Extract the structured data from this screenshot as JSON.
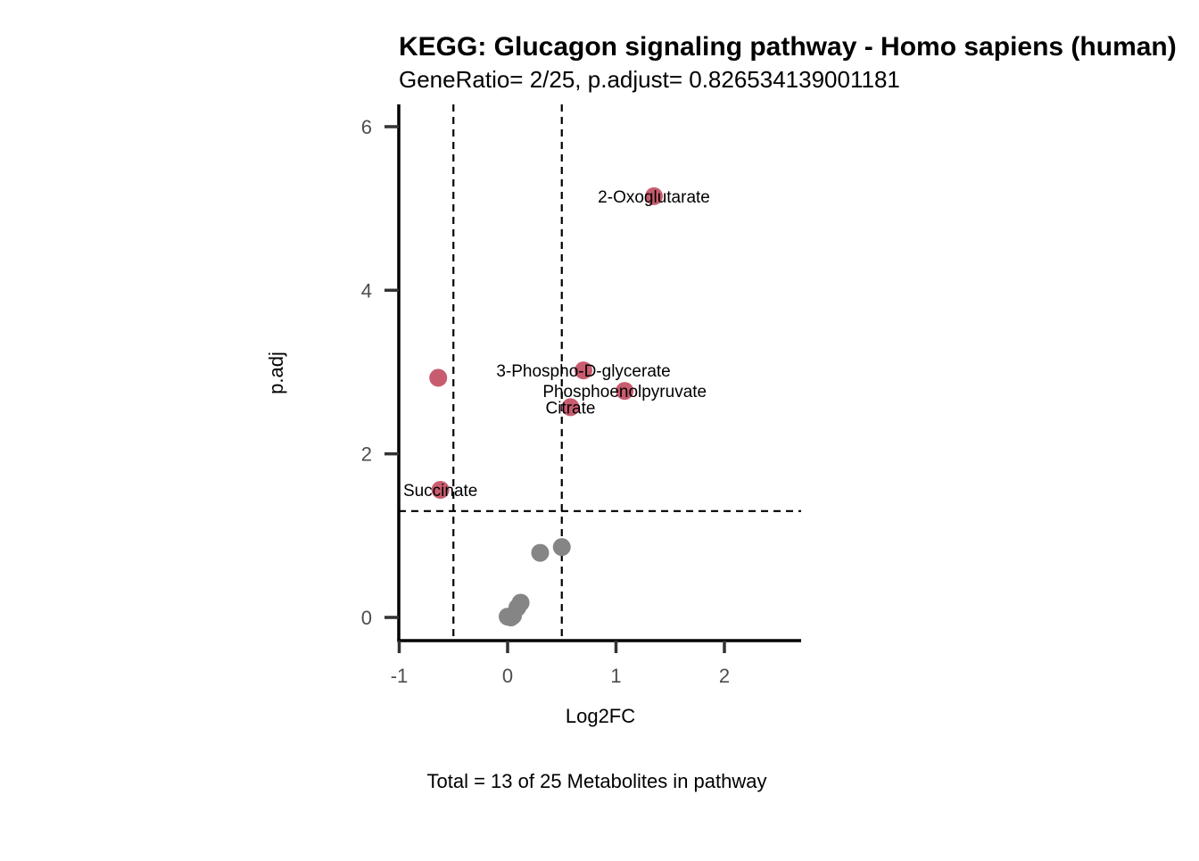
{
  "chart_data": {
    "type": "scatter",
    "title": "KEGG: Glucagon signaling pathway - Homo sapiens (human)",
    "subtitle": "GeneRatio= 2/25, p.adjust= 0.826534139001181",
    "xlabel": "Log2FC",
    "ylabel": "p.adj",
    "caption": "Total = 13 of 25 Metabolites in pathway",
    "xlim": [
      -1,
      2.7
    ],
    "ylim": [
      -0.3,
      6.3
    ],
    "x_ticks": [
      -1,
      0,
      1,
      2
    ],
    "x_tick_labels": [
      "-1",
      "0",
      "1",
      "2"
    ],
    "y_ticks": [
      0,
      2,
      4,
      6
    ],
    "y_tick_labels": [
      "0",
      "2",
      "4",
      "6"
    ],
    "grid": false,
    "vlines": [
      -0.5,
      0.5
    ],
    "hlines": [
      1.3
    ],
    "colors": {
      "significant": "#c85c6f",
      "nonsignificant": "#858585",
      "axis": "#000000",
      "tick": "#333333",
      "tick_label": "#4d4d4d",
      "threshold": "#000000"
    },
    "series": [
      {
        "name": "significant",
        "points": [
          {
            "x": 1.35,
            "y": 5.15,
            "label": "2-Oxoglutarate"
          },
          {
            "x": 0.7,
            "y": 3.02,
            "label": "3-Phospho-D-glycerate"
          },
          {
            "x": 1.08,
            "y": 2.77,
            "label": "Phosphoenolpyruvate"
          },
          {
            "x": 0.58,
            "y": 2.57,
            "label": "Citrate"
          },
          {
            "x": -0.64,
            "y": 2.93,
            "label": ""
          },
          {
            "x": -0.62,
            "y": 1.56,
            "label": "Succinate"
          }
        ]
      },
      {
        "name": "nonsignificant",
        "points": [
          {
            "x": 0.5,
            "y": 0.86,
            "label": ""
          },
          {
            "x": 0.3,
            "y": 0.79,
            "label": ""
          },
          {
            "x": 0.12,
            "y": 0.18,
            "label": ""
          },
          {
            "x": 0.09,
            "y": 0.12,
            "label": ""
          },
          {
            "x": 0.05,
            "y": 0.02,
            "label": ""
          },
          {
            "x": 0.0,
            "y": 0.01,
            "label": ""
          },
          {
            "x": 0.03,
            "y": 0.0,
            "label": ""
          }
        ]
      }
    ]
  }
}
